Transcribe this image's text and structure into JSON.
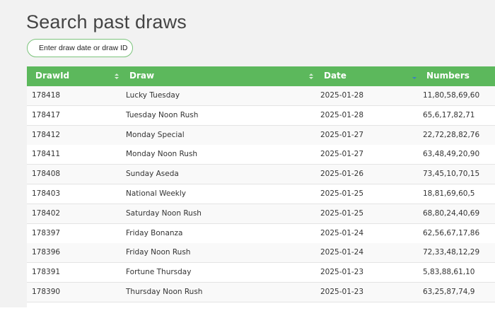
{
  "header": {
    "title": "Search past draws"
  },
  "search": {
    "placeholder": "Enter draw date or draw ID"
  },
  "table": {
    "columns": [
      "DrawId",
      "Draw",
      "Date",
      "Numbers"
    ],
    "rows": [
      [
        "178418",
        "Lucky Tuesday",
        "2025-01-28",
        "11,80,58,69,60"
      ],
      [
        "178417",
        "Tuesday Noon Rush",
        "2025-01-28",
        "65,6,17,82,71"
      ],
      [
        "178412",
        "Monday Special",
        "2025-01-27",
        "22,72,28,82,76"
      ],
      [
        "178411",
        "Monday Noon Rush",
        "2025-01-27",
        "63,48,49,20,90"
      ],
      [
        "178408",
        "Sunday Aseda",
        "2025-01-26",
        "73,45,10,70,15"
      ],
      [
        "178403",
        "National Weekly",
        "2025-01-25",
        "18,81,69,60,5"
      ],
      [
        "178402",
        "Saturday Noon Rush",
        "2025-01-25",
        "68,80,24,40,69"
      ],
      [
        "178397",
        "Friday Bonanza",
        "2025-01-24",
        "62,56,67,17,86"
      ],
      [
        "178396",
        "Friday Noon Rush",
        "2025-01-24",
        "72,33,48,12,29"
      ],
      [
        "178391",
        "Fortune Thursday",
        "2025-01-23",
        "5,83,88,61,10"
      ],
      [
        "178390",
        "Thursday Noon Rush",
        "2025-01-23",
        "63,25,87,74,9"
      ]
    ]
  }
}
